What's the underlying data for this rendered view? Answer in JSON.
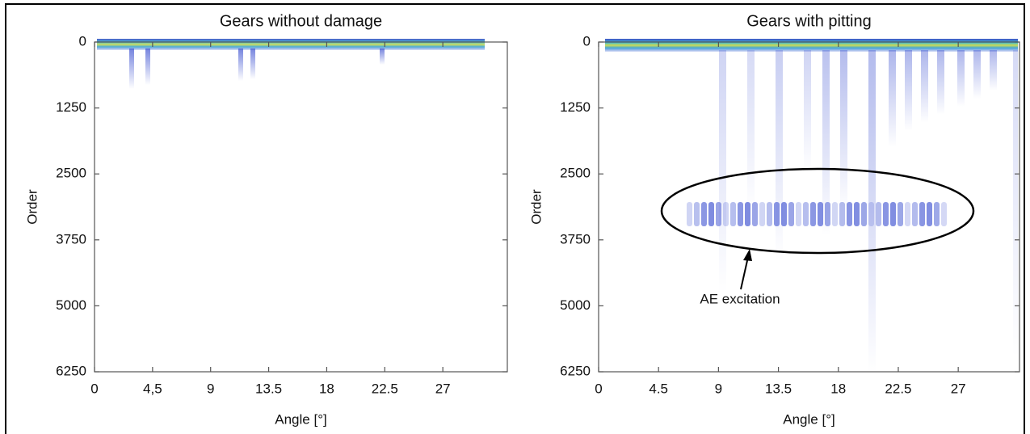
{
  "chart_data": [
    {
      "type": "heatmap",
      "title": "Gears without damage",
      "xlabel": "Angle [°]",
      "ylabel": "Order",
      "xlim": [
        0,
        32
      ],
      "ylim": [
        0,
        6250
      ],
      "xticks": [
        0,
        {
          "value": 4.5,
          "label": "4,5"
        },
        9,
        13.5,
        18,
        22.5,
        27
      ],
      "yticks": [
        0,
        1250,
        2500,
        3750,
        5000,
        6250
      ],
      "y_reversed": true
    },
    {
      "type": "heatmap",
      "title": "Gears with pitting",
      "xlabel": "Angle [°]",
      "ylabel": "Order",
      "xlim": [
        0,
        31.6
      ],
      "ylim": [
        0,
        6250
      ],
      "xticks": [
        0,
        4.5,
        9,
        13.5,
        18,
        22.5,
        27
      ],
      "yticks": [
        0,
        1250,
        2500,
        3750,
        5000,
        6250
      ],
      "y_reversed": true,
      "annotation": "AE excitation"
    }
  ]
}
